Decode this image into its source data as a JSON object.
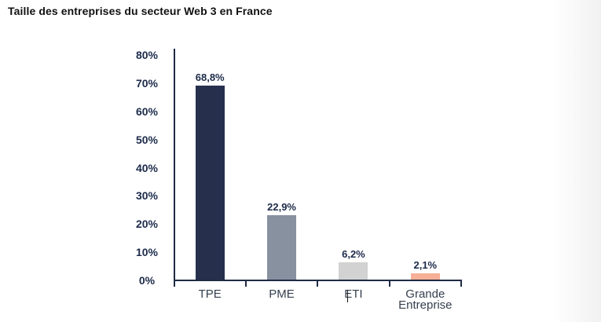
{
  "chart_data": {
    "type": "bar",
    "title": "Taille des entreprises du secteur Web 3 en France",
    "categories": [
      "TPE",
      "PME",
      "ETI",
      "Grande Entreprise"
    ],
    "values": [
      68.8,
      22.9,
      6.2,
      2.1
    ],
    "value_labels": [
      "68,8%",
      "22,9%",
      "6,2%",
      "2,1%"
    ],
    "bar_colors": [
      "#26304d",
      "#8791a0",
      "#d2d2d2",
      "#f7b096"
    ],
    "y_ticks": [
      {
        "value": 80,
        "label": "80%"
      },
      {
        "value": 70,
        "label": "70%"
      },
      {
        "value": 60,
        "label": "60%"
      },
      {
        "value": 50,
        "label": "50%"
      },
      {
        "value": 40,
        "label": "40%"
      },
      {
        "value": 30,
        "label": "30%"
      },
      {
        "value": 20,
        "label": "20%"
      },
      {
        "value": 10,
        "label": "10%"
      },
      {
        "value": 0,
        "label": "0%"
      }
    ],
    "ylim": [
      0,
      80
    ],
    "xlabel": "",
    "ylabel": "",
    "grid": false,
    "legend": false,
    "axis_color": "#1f2b45",
    "axis_text_color": "#1c2b4a",
    "category_text_color": "#35404f",
    "caret": {
      "visible": true,
      "before_category": "ETI"
    }
  }
}
